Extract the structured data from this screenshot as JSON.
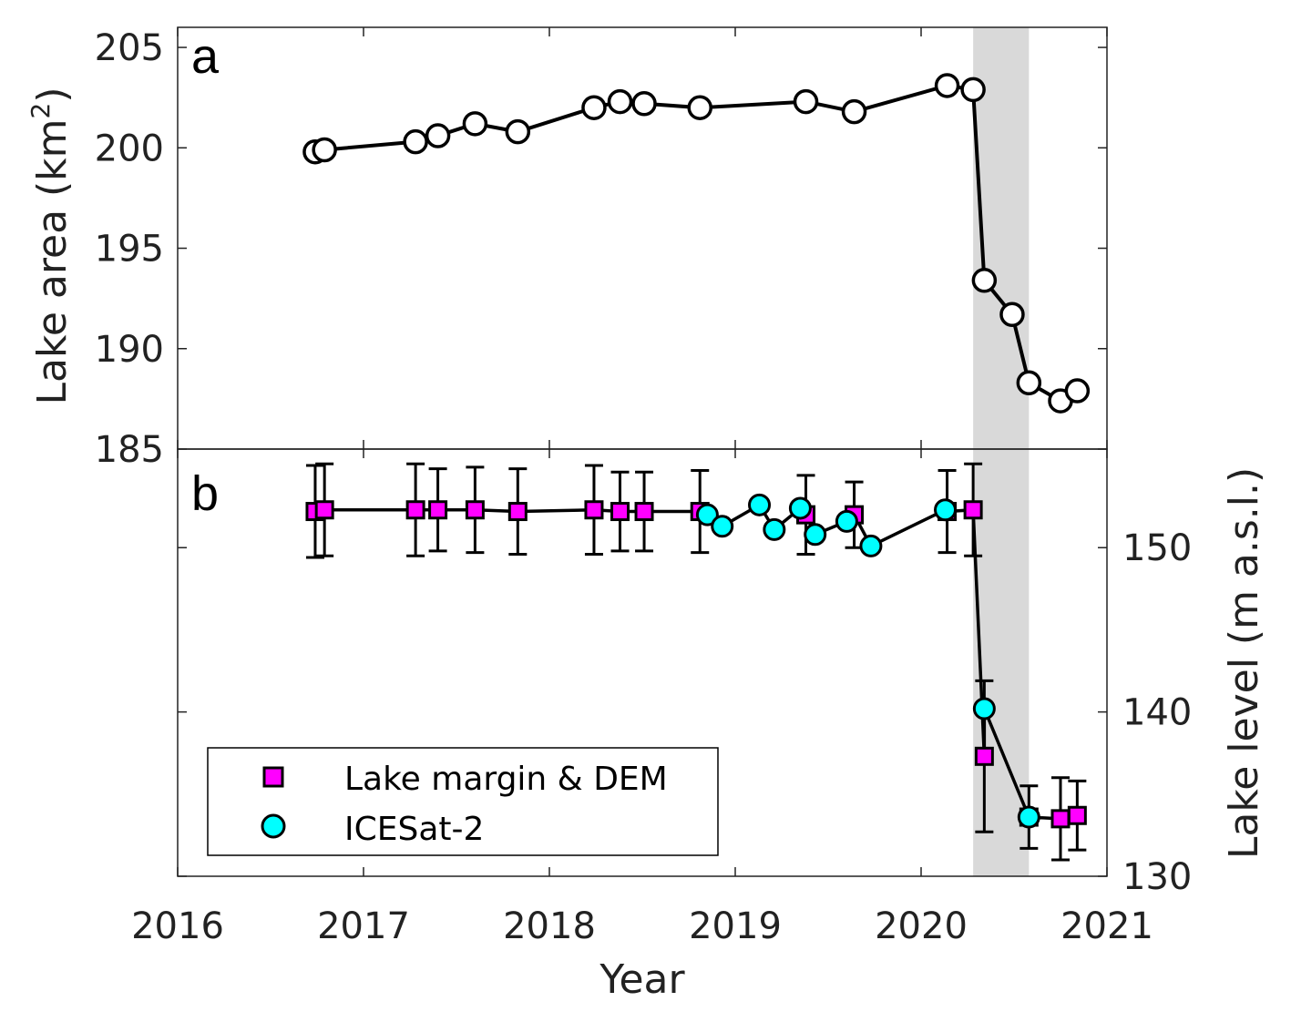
{
  "chart_data": [
    {
      "type": "line",
      "panel_label": "a",
      "ylabel_main": "Lake area (km",
      "ylabel_sup": "2",
      "ylabel_end": ")",
      "ylim": [
        185,
        206
      ],
      "yticks": [
        "185",
        "190",
        "195",
        "200",
        "205"
      ],
      "series": [
        {
          "marker": "circle-open",
          "color": "#ffffff",
          "x": [
            2016.74,
            2016.79,
            2017.28,
            2017.4,
            2017.6,
            2017.83,
            2018.24,
            2018.38,
            2018.51,
            2018.81,
            2019.38,
            2019.64,
            2020.14,
            2020.28,
            2020.34,
            2020.49,
            2020.58,
            2020.75,
            2020.84
          ],
          "y": [
            199.8,
            199.9,
            200.3,
            200.6,
            201.2,
            200.8,
            202.0,
            202.3,
            202.2,
            202.0,
            202.3,
            201.8,
            203.1,
            202.9,
            193.4,
            191.7,
            188.3,
            187.4,
            187.9
          ]
        }
      ]
    },
    {
      "type": "line",
      "panel_label": "b",
      "ylabel": "Lake level (m a.s.l.)",
      "ylim": [
        130,
        156
      ],
      "yticks": [
        "130",
        "140",
        "150"
      ],
      "series": [
        {
          "name": "Lake margin & DEM",
          "marker": "square",
          "color": "#ff00ff",
          "error": 2.8,
          "x": [
            2016.74,
            2016.79,
            2017.28,
            2017.4,
            2017.6,
            2017.83,
            2018.24,
            2018.38,
            2018.51,
            2018.81,
            2019.38,
            2019.64,
            2020.14,
            2020.28,
            2020.34,
            2020.49,
            2020.58,
            2020.75,
            2020.84
          ],
          "y": [
            152.2,
            152.3,
            152.3,
            152.3,
            152.3,
            152.2,
            152.3,
            152.2,
            152.2,
            152.2,
            152.0,
            152.0,
            152.2,
            152.3,
            137.3,
            null,
            133.6,
            133.5,
            133.7
          ],
          "error_list": [
            2.8,
            2.8,
            2.8,
            2.5,
            2.6,
            2.6,
            2.7,
            2.4,
            2.4,
            2.5,
            2.4,
            2.0,
            2.5,
            2.8,
            4.6,
            null,
            1.9,
            2.5,
            2.1
          ]
        },
        {
          "name": "ICESat-2",
          "marker": "circle",
          "color": "#00ffff",
          "x": [
            2018.85,
            2018.93,
            2019.13,
            2019.21,
            2019.35,
            2019.43,
            2019.6,
            2019.73,
            2020.13,
            2020.34,
            2020.58
          ],
          "y": [
            152.0,
            151.3,
            152.6,
            151.1,
            152.4,
            150.8,
            151.6,
            150.1,
            152.3,
            140.2,
            133.6
          ]
        }
      ]
    }
  ],
  "shade": {
    "x": [
      2020.28,
      2020.58
    ],
    "color": "#d9d9d9"
  },
  "xaxis": {
    "label": "Year",
    "xlim": [
      2016,
      2021
    ],
    "ticks": [
      "2016",
      "2017",
      "2018",
      "2019",
      "2020",
      "2021"
    ]
  },
  "legend": {
    "placement": "lower-left",
    "entries": [
      "Lake margin & DEM",
      "ICESat-2"
    ]
  }
}
